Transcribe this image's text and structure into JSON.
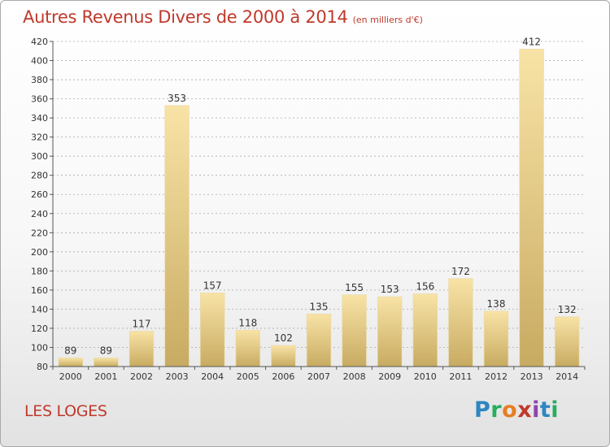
{
  "header": {
    "title": "Autres Revenus Divers de 2000 à 2014",
    "unit": "(en milliers d'€)"
  },
  "footer": {
    "place": "LES LOGES",
    "logo_letters": [
      "P",
      "r",
      "o",
      "x",
      "i",
      "t",
      "i"
    ]
  },
  "colors": {
    "title": "#c0392b",
    "bar_light": "#f8e3a6",
    "bar_dark": "#c8ab62",
    "grid": "#aaaaaa"
  },
  "chart_data": {
    "type": "bar",
    "title": "Autres Revenus Divers de 2000 à 2014",
    "xlabel": "",
    "ylabel": "",
    "categories": [
      "2000",
      "2001",
      "2002",
      "2003",
      "2004",
      "2005",
      "2006",
      "2007",
      "2008",
      "2009",
      "2010",
      "2011",
      "2012",
      "2013",
      "2014"
    ],
    "values": [
      89,
      89,
      117,
      353,
      157,
      118,
      102,
      135,
      155,
      153,
      156,
      172,
      138,
      412,
      132
    ],
    "ylim": [
      80,
      420
    ],
    "yticks": [
      80,
      100,
      120,
      140,
      160,
      180,
      200,
      220,
      240,
      260,
      280,
      300,
      320,
      340,
      360,
      380,
      400,
      420
    ],
    "grid": "horizontal-dashed"
  }
}
